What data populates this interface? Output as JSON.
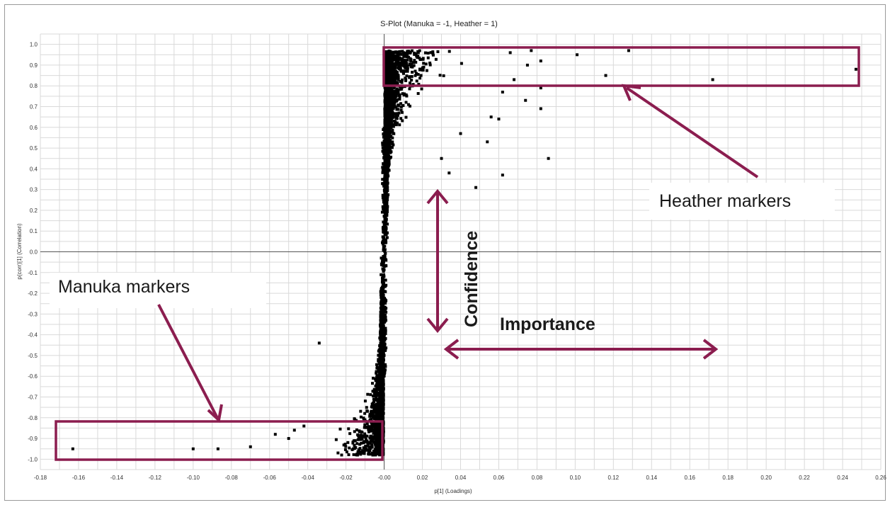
{
  "chart_data": {
    "type": "scatter",
    "title": "S-Plot (Manuka = -1, Heather = 1)",
    "xlabel": "p[1] (Loadings)",
    "ylabel": "p(corr)[1] (Correlation)",
    "xlim": [
      -0.18,
      0.26
    ],
    "ylim": [
      -1.05,
      1.05
    ],
    "x_ticks": [
      "-0.18",
      "-0.16",
      "-0.14",
      "-0.12",
      "-0.10",
      "-0.08",
      "-0.06",
      "-0.04",
      "-0.02",
      "-0.00",
      "0.02",
      "0.04",
      "0.06",
      "0.08",
      "0.10",
      "0.12",
      "0.14",
      "0.16",
      "0.18",
      "0.20",
      "0.22",
      "0.24",
      "0.26"
    ],
    "y_ticks": [
      "1.0",
      "0.9",
      "0.8",
      "0.7",
      "0.6",
      "0.5",
      "0.4",
      "0.3",
      "0.2",
      "0.1",
      "0.0",
      "-0.1",
      "-0.2",
      "-0.3",
      "-0.4",
      "-0.5",
      "-0.6",
      "-0.7",
      "-0.8",
      "-0.9",
      "-1.0"
    ],
    "grid": true,
    "marker_color": "#000000",
    "annotation_color": "#8b1d4f",
    "outliers": [
      {
        "x": 0.247,
        "y": 0.88
      },
      {
        "x": 0.128,
        "y": 0.97
      },
      {
        "x": 0.116,
        "y": 0.85
      },
      {
        "x": 0.101,
        "y": 0.95
      },
      {
        "x": 0.086,
        "y": 0.45
      },
      {
        "x": 0.082,
        "y": 0.92
      },
      {
        "x": 0.082,
        "y": 0.79
      },
      {
        "x": 0.082,
        "y": 0.69
      },
      {
        "x": 0.077,
        "y": 0.97
      },
      {
        "x": 0.075,
        "y": 0.9
      },
      {
        "x": 0.074,
        "y": 0.73
      },
      {
        "x": 0.068,
        "y": 0.83
      },
      {
        "x": 0.066,
        "y": 0.96
      },
      {
        "x": 0.062,
        "y": 0.77
      },
      {
        "x": 0.062,
        "y": 0.37
      },
      {
        "x": 0.06,
        "y": 0.64
      },
      {
        "x": 0.056,
        "y": 0.65
      },
      {
        "x": 0.054,
        "y": 0.53
      },
      {
        "x": 0.048,
        "y": 0.31
      },
      {
        "x": 0.04,
        "y": 0.57
      },
      {
        "x": 0.034,
        "y": 0.38
      },
      {
        "x": 0.03,
        "y": 0.45
      },
      {
        "x": 0.172,
        "y": 0.83
      },
      {
        "x": -0.163,
        "y": -0.95
      },
      {
        "x": -0.1,
        "y": -0.95
      },
      {
        "x": -0.087,
        "y": -0.95
      },
      {
        "x": -0.07,
        "y": -0.94
      },
      {
        "x": -0.057,
        "y": -0.88
      },
      {
        "x": -0.05,
        "y": -0.9
      },
      {
        "x": -0.047,
        "y": -0.86
      },
      {
        "x": -0.042,
        "y": -0.84
      },
      {
        "x": -0.034,
        "y": -0.44
      }
    ],
    "annotations": {
      "heather_label": "Heather markers",
      "manuka_label": "Manuka markers",
      "confidence_label": "Confidence",
      "importance_label": "Importance"
    }
  }
}
